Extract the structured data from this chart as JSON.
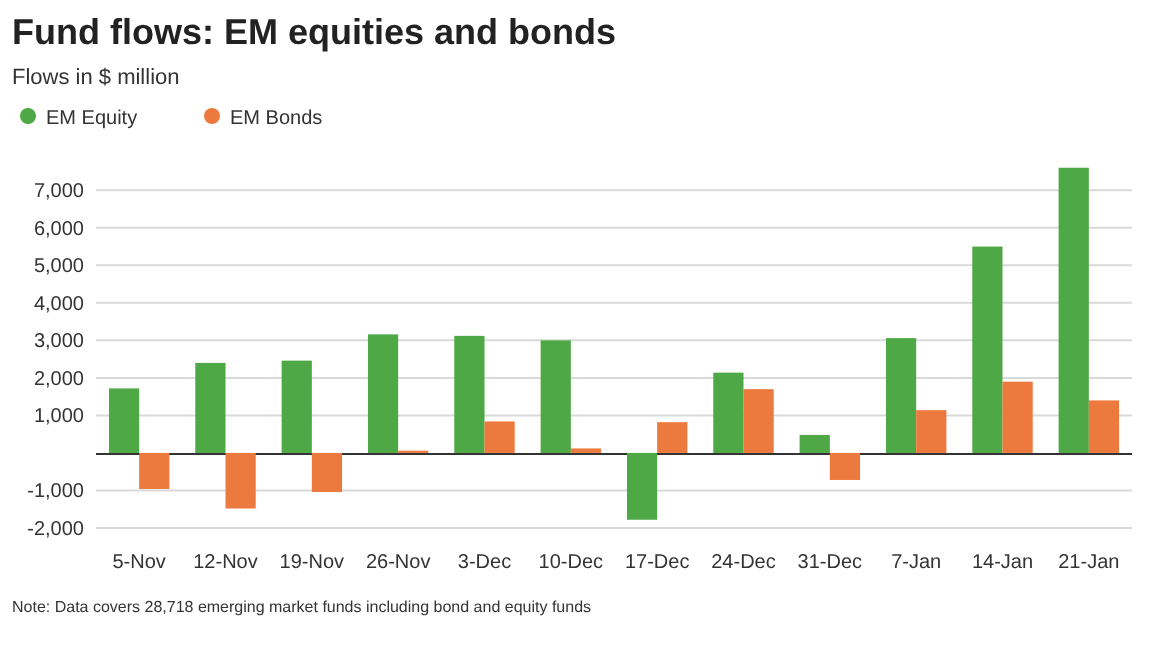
{
  "chart_data": {
    "type": "bar",
    "title": "Fund flows: EM equities and bonds",
    "subtitle": "Flows in $ million",
    "categories": [
      "5-Nov",
      "12-Nov",
      "19-Nov",
      "26-Nov",
      "3-Dec",
      "10-Dec",
      "17-Dec",
      "24-Dec",
      "31-Dec",
      "7-Jan",
      "14-Jan",
      "21-Jan"
    ],
    "series": [
      {
        "name": "EM Equity",
        "color": "#4ea845",
        "values": [
          1720,
          2400,
          2460,
          3160,
          3120,
          3000,
          -1780,
          2140,
          480,
          3060,
          5500,
          7600
        ]
      },
      {
        "name": "EM Bonds",
        "color": "#ec7a3e",
        "values": [
          -960,
          -1480,
          -1040,
          60,
          840,
          120,
          820,
          1700,
          -720,
          1140,
          1900,
          1400
        ]
      }
    ],
    "ylim": [
      -2000,
      7700
    ],
    "yticks": [
      {
        "value": -2000,
        "label": "-2,000"
      },
      {
        "value": -1000,
        "label": "-1,000"
      },
      {
        "value": 0,
        "label": null
      },
      {
        "value": 1000,
        "label": "1,000"
      },
      {
        "value": 2000,
        "label": "2,000"
      },
      {
        "value": 3000,
        "label": "3,000"
      },
      {
        "value": 4000,
        "label": "4,000"
      },
      {
        "value": 5000,
        "label": "5,000"
      },
      {
        "value": 6000,
        "label": "6,000"
      },
      {
        "value": 7000,
        "label": "7,000"
      }
    ],
    "grid": "y",
    "legend": "top left",
    "annotations": [
      "Note: Data covers 28,718 emerging market funds including bond and equity funds"
    ]
  }
}
